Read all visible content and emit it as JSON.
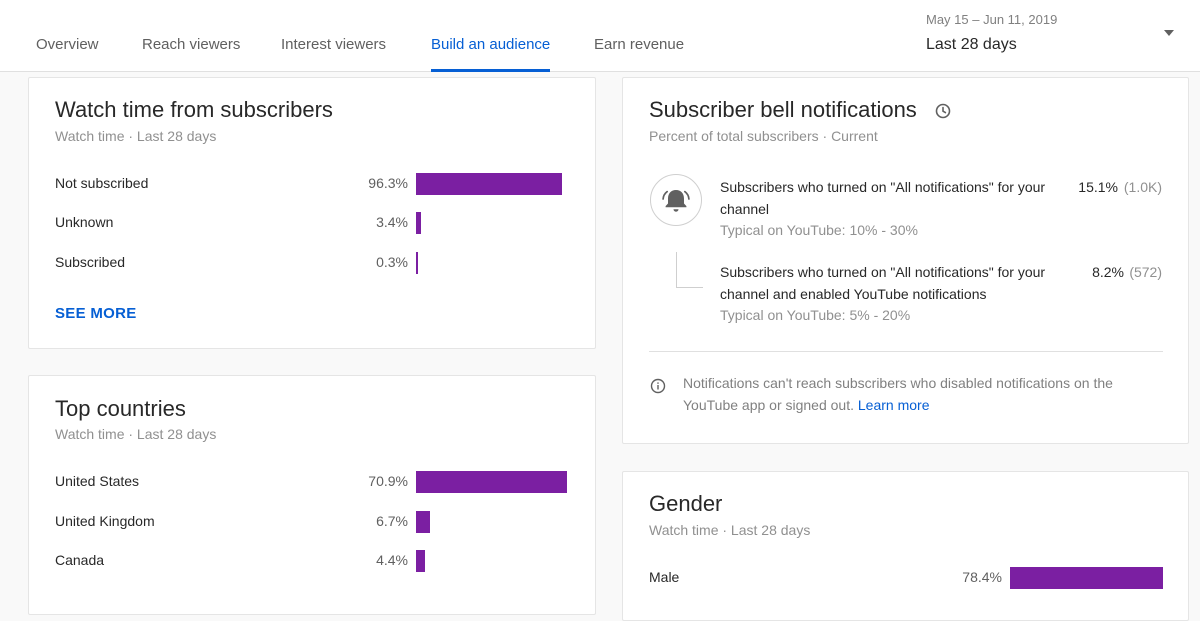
{
  "header": {
    "tabs": [
      {
        "label": "Overview",
        "active": false
      },
      {
        "label": "Reach viewers",
        "active": false
      },
      {
        "label": "Interest viewers",
        "active": false
      },
      {
        "label": "Build an audience",
        "active": true
      },
      {
        "label": "Earn revenue",
        "active": false
      }
    ],
    "date_range": "May 15 – Jun 11, 2019",
    "period": "Last 28 days",
    "dropdown_icon": "caret-down-icon"
  },
  "colors": {
    "accent": "#065fd4",
    "bar": "#7b1fa2",
    "muted_text": "#909090"
  },
  "watch_time_card": {
    "title": "Watch time from subscribers",
    "subtitle": "Watch time · Last 28 days",
    "rows": [
      {
        "label": "Not subscribed",
        "value": "96.3%",
        "fraction": 0.963
      },
      {
        "label": "Unknown",
        "value": "3.4%",
        "fraction": 0.034
      },
      {
        "label": "Subscribed",
        "value": "0.3%",
        "fraction": 0.003
      }
    ],
    "see_more": "SEE MORE"
  },
  "top_countries_card": {
    "title": "Top countries",
    "subtitle": "Watch time · Last 28 days",
    "rows": [
      {
        "label": "United States",
        "value": "70.9%",
        "fraction": 0.709
      },
      {
        "label": "United Kingdom",
        "value": "6.7%",
        "fraction": 0.067
      },
      {
        "label": "Canada",
        "value": "4.4%",
        "fraction": 0.044
      }
    ]
  },
  "bell_card": {
    "title": "Subscriber bell notifications",
    "title_icon": "clock-icon",
    "subtitle": "Percent of total subscribers · Current",
    "items": [
      {
        "text": "Subscribers who turned on \"All notifications\" for your channel",
        "typical": "Typical on YouTube: 10% - 30%",
        "percent": "15.1%",
        "count": "(1.0K)"
      },
      {
        "text": "Subscribers who turned on \"All notifications\" for your channel and enabled YouTube notifications",
        "typical": "Typical on YouTube: 5% - 20%",
        "percent": "8.2%",
        "count": "(572)"
      }
    ],
    "info_text": "Notifications can't reach subscribers who disabled notifications on the YouTube app or signed out.",
    "learn_more": "Learn more"
  },
  "gender_card": {
    "title": "Gender",
    "subtitle": "Watch time · Last 28 days",
    "rows": [
      {
        "label": "Male",
        "value": "78.4%",
        "fraction": 0.784
      }
    ]
  }
}
